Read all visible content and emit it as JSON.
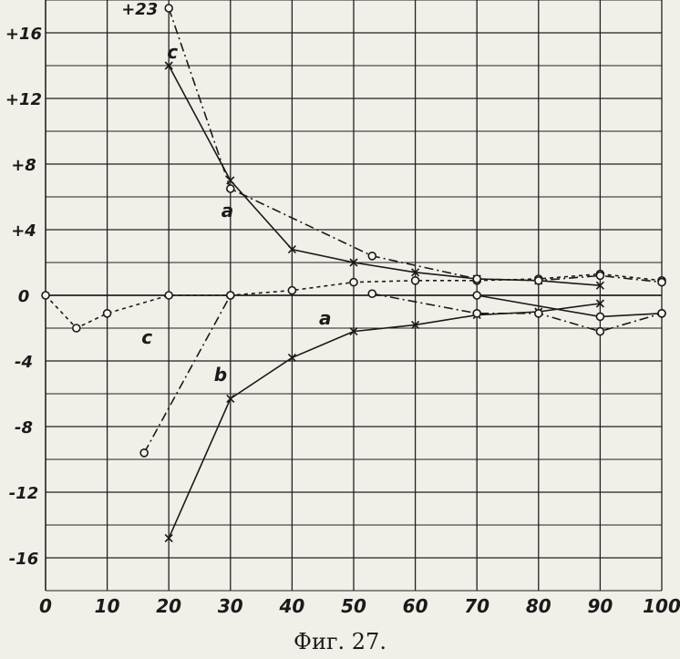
{
  "chart_data": {
    "type": "line",
    "title": "",
    "caption": "Фиг. 27.",
    "xlabel": "",
    "ylabel": "",
    "xlim": [
      0,
      100
    ],
    "ylim": [
      -18,
      18
    ],
    "grid": true,
    "x_ticks": [
      "0",
      "10",
      "20",
      "30",
      "40",
      "50",
      "60",
      "70",
      "80",
      "90",
      "100"
    ],
    "y_ticks": [
      {
        "value": 16,
        "label": "+16"
      },
      {
        "value": 12,
        "label": "+12"
      },
      {
        "value": 8,
        "label": "+8"
      },
      {
        "value": 4,
        "label": "+4"
      },
      {
        "value": 0,
        "label": "0"
      },
      {
        "value": -4,
        "label": "-4"
      },
      {
        "value": -8,
        "label": "-8"
      },
      {
        "value": -12,
        "label": "-12"
      },
      {
        "value": -16,
        "label": "-16"
      }
    ],
    "series": [
      {
        "name": "a",
        "style": "solid",
        "marker": "cross",
        "color": "#1a1a1a",
        "points": [
          [
            20,
            14
          ],
          [
            30,
            7
          ],
          [
            40,
            2.8
          ],
          [
            50,
            2
          ],
          [
            60,
            1.4
          ],
          [
            70,
            1
          ],
          [
            80,
            0.9
          ],
          [
            90,
            0.6
          ]
        ]
      },
      {
        "name": "a",
        "style": "solid",
        "marker": "cross",
        "color": "#1a1a1a",
        "points": [
          [
            20,
            -14.8
          ],
          [
            30,
            -6.3
          ],
          [
            40,
            -3.8
          ],
          [
            50,
            -2.2
          ],
          [
            60,
            -1.8
          ],
          [
            70,
            -1.2
          ],
          [
            80,
            -1
          ],
          [
            90,
            -0.5
          ]
        ]
      },
      {
        "name": "b",
        "style": "dashdot",
        "marker": "circle",
        "color": "#1a1a1a",
        "points": [
          [
            16,
            -9.6
          ],
          [
            30,
            0
          ]
        ]
      },
      {
        "name": "c",
        "style": "dashed",
        "marker": "circle",
        "color": "#1a1a1a",
        "points": [
          [
            0,
            0
          ],
          [
            5,
            -2
          ],
          [
            10,
            -1.1
          ],
          [
            20,
            0
          ],
          [
            30,
            0
          ],
          [
            40,
            0.3
          ],
          [
            50,
            0.8
          ],
          [
            60,
            0.9
          ],
          [
            70,
            0.9
          ],
          [
            80,
            1
          ],
          [
            90,
            1.3
          ],
          [
            100,
            0.9
          ]
        ]
      },
      {
        "name": "",
        "style": "dashdot",
        "marker": "circle",
        "color": "#1a1a1a",
        "points": [
          [
            20,
            17.5
          ],
          [
            30,
            6.5
          ],
          [
            53,
            2.4
          ],
          [
            70,
            1
          ],
          [
            80,
            0.9
          ],
          [
            90,
            1.2
          ],
          [
            100,
            0.8
          ]
        ]
      },
      {
        "name": "",
        "style": "dashdot",
        "marker": "circle",
        "color": "#1a1a1a",
        "points": [
          [
            53,
            0.1
          ],
          [
            70,
            -1.1
          ],
          [
            80,
            -1.1
          ],
          [
            90,
            -2.2
          ],
          [
            100,
            -1.1
          ]
        ]
      },
      {
        "name": "",
        "style": "solid",
        "marker": "circle",
        "color": "#1a1a1a",
        "points": [
          [
            70,
            0
          ],
          [
            90,
            -1.3
          ],
          [
            100,
            -1.1
          ]
        ]
      }
    ],
    "annotations": [
      {
        "text": "+23",
        "x": 20,
        "y": 17.5
      },
      {
        "text": "c",
        "x": 20,
        "y": 14
      },
      {
        "text": "a",
        "x": 30,
        "y": 6
      },
      {
        "text": "a",
        "x": 50,
        "y": -2
      },
      {
        "text": "b",
        "x": 30,
        "y": -4
      },
      {
        "text": "c",
        "x": 20,
        "y": -1.5
      }
    ]
  }
}
